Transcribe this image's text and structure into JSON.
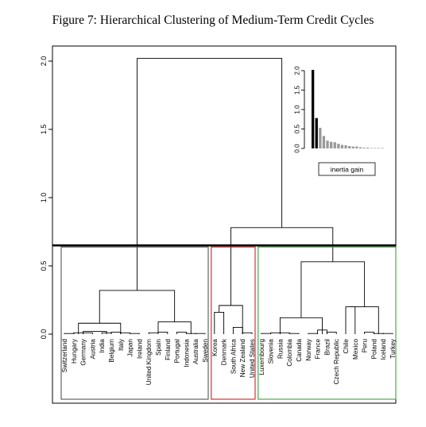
{
  "figure_title": "Figure 7: Hierarchical Clustering of Medium-Term Credit Cycles",
  "chart_data": [
    {
      "type": "dendrogram",
      "title": "Figure 7: Hierarchical Clustering of Medium-Term Credit Cycles",
      "ylim": [
        0,
        2.0
      ],
      "yticks": [
        "0.0",
        "0.5",
        "1.0",
        "1.5",
        "2.0"
      ],
      "cut_height": 0.65,
      "leaves": [
        "Switzerland",
        "Hungary",
        "Germany",
        "Austria",
        "India",
        "Belgium",
        "Italy",
        "Japan",
        "Ireland",
        "United Kingdom",
        "Spain",
        "Finland",
        "Portugal",
        "Indonesia",
        "Australia",
        "Sweden",
        "Korea",
        "Denmark",
        "South Africa",
        "New Zealand",
        "United States",
        "Luxembourg",
        "Slovenia",
        "Russia",
        "Colombia",
        "Canada",
        "Norway",
        "France",
        "Brazil",
        "Czech Republic",
        "Chile",
        "Mexico",
        "Peru",
        "Poland",
        "Iceland",
        "Turkey"
      ],
      "merges": [
        {
          "a": [
            0
          ],
          "b": [
            1
          ],
          "height": 0.005
        },
        {
          "a": [
            1
          ],
          "b": [
            2
          ],
          "height": 0.01
        },
        {
          "a": [
            2
          ],
          "b": [
            3
          ],
          "height": 0.01
        },
        {
          "a": [
            1,
            2,
            3
          ],
          "b": [
            4,
            5
          ],
          "height": 0.02
        },
        {
          "a": [
            4
          ],
          "b": [
            5
          ],
          "height": 0.01
        },
        {
          "a": [
            5
          ],
          "b": [
            6
          ],
          "height": 0.015
        },
        {
          "a": [
            6
          ],
          "b": [
            7
          ],
          "height": 0.01
        },
        {
          "a": [
            7
          ],
          "b": [
            8
          ],
          "height": 0.005
        },
        {
          "a": [
            0,
            1,
            2,
            3
          ],
          "b": [
            4,
            5,
            6,
            7,
            8
          ],
          "height": 0.08
        },
        {
          "a": [
            9
          ],
          "b": [
            10
          ],
          "height": 0.01
        },
        {
          "a": [
            10
          ],
          "b": [
            11
          ],
          "height": 0.015
        },
        {
          "a": [
            12
          ],
          "b": [
            13
          ],
          "height": 0.015
        },
        {
          "a": [
            13
          ],
          "b": [
            14
          ],
          "height": 0.005
        },
        {
          "a": [
            14
          ],
          "b": [
            15
          ],
          "height": 0.005
        },
        {
          "a": [
            9,
            10,
            11
          ],
          "b": [
            12,
            13,
            14,
            15
          ],
          "height": 0.09
        },
        {
          "a": [
            0,
            1,
            2,
            3,
            4,
            5,
            6,
            7,
            8
          ],
          "b": [
            9,
            10,
            11,
            12,
            13,
            14,
            15
          ],
          "height": 0.32
        },
        {
          "a": [
            16
          ],
          "b": [
            17
          ],
          "height": 0.16
        },
        {
          "a": [
            18
          ],
          "b": [
            19
          ],
          "height": 0.05
        },
        {
          "a": [
            19
          ],
          "b": [
            20
          ],
          "height": 0.01
        },
        {
          "a": [
            16,
            17
          ],
          "b": [
            18,
            19,
            20
          ],
          "height": 0.21
        },
        {
          "a": [
            21
          ],
          "b": [
            22
          ],
          "height": 0.005
        },
        {
          "a": [
            22
          ],
          "b": [
            23
          ],
          "height": 0.01
        },
        {
          "a": [
            23
          ],
          "b": [
            24
          ],
          "height": 0.01
        },
        {
          "a": [
            24
          ],
          "b": [
            25
          ],
          "height": 0.005
        },
        {
          "a": [
            26
          ],
          "b": [
            27
          ],
          "height": 0.005
        },
        {
          "a": [
            27
          ],
          "b": [
            28
          ],
          "height": 0.03
        },
        {
          "a": [
            28
          ],
          "b": [
            29
          ],
          "height": 0.015
        },
        {
          "a": [
            21,
            22,
            23,
            24,
            25
          ],
          "b": [
            26,
            27,
            28,
            29
          ],
          "height": 0.12
        },
        {
          "a": [
            30
          ],
          "b": [
            31
          ],
          "height": 0.2
        },
        {
          "a": [
            32
          ],
          "b": [
            33
          ],
          "height": 0.015
        },
        {
          "a": [
            33
          ],
          "b": [
            34
          ],
          "height": 0.005
        },
        {
          "a": [
            34
          ],
          "b": [
            35
          ],
          "height": 0.005
        },
        {
          "a": [
            30,
            31
          ],
          "b": [
            32,
            33,
            34,
            35
          ],
          "height": 0.2
        },
        {
          "a": [
            21,
            22,
            23,
            24,
            25,
            26,
            27,
            28,
            29
          ],
          "b": [
            30,
            31,
            32,
            33,
            34,
            35
          ],
          "height": 0.53
        },
        {
          "a": [
            16,
            17,
            18,
            19,
            20
          ],
          "b": [
            21,
            22,
            23,
            24,
            25,
            26,
            27,
            28,
            29,
            30,
            31,
            32,
            33,
            34,
            35
          ],
          "height": 0.78
        },
        {
          "a": [
            0,
            1,
            2,
            3,
            4,
            5,
            6,
            7,
            8,
            9,
            10,
            11,
            12,
            13,
            14,
            15
          ],
          "b": [
            16,
            17,
            18,
            19,
            20,
            21,
            22,
            23,
            24,
            25,
            26,
            27,
            28,
            29,
            30,
            31,
            32,
            33,
            34,
            35
          ],
          "height": 2.02
        }
      ],
      "clusters": [
        {
          "leaves": [
            0,
            15
          ],
          "color": "#555555"
        },
        {
          "leaves": [
            16,
            20
          ],
          "color": "#d42020"
        },
        {
          "leaves": [
            21,
            35
          ],
          "color": "#3aa13a"
        }
      ]
    },
    {
      "type": "bar",
      "legend": "inertia gain",
      "ylim": [
        0,
        2.0
      ],
      "yticks": [
        "0.0",
        "0.5",
        "1.0",
        "1.5",
        "2.0"
      ],
      "values": [
        2.02,
        0.78,
        0.53,
        0.32,
        0.2,
        0.17,
        0.16,
        0.12,
        0.09,
        0.08,
        0.06,
        0.05,
        0.05,
        0.03,
        0.02,
        0.02,
        0.01,
        0.01,
        0.01,
        0.01
      ],
      "colors": [
        "#000000",
        "#000000",
        "#999999",
        "#999999",
        "#999999",
        "#999999",
        "#999999",
        "#999999",
        "#999999",
        "#999999",
        "#999999",
        "#999999",
        "#999999",
        "#999999",
        "#999999",
        "#999999",
        "#999999",
        "#999999",
        "#999999",
        "#999999"
      ]
    }
  ]
}
